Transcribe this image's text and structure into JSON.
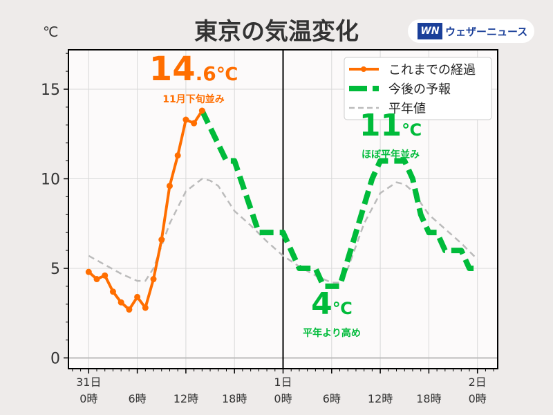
{
  "header": {
    "title": "東京の気温変化",
    "unit": "℃",
    "logo_mark": "WN",
    "logo_text": "ウェザーニュース"
  },
  "annotations": {
    "max_obs": {
      "value_int": "14",
      "value_dec": ".6",
      "unit": "℃",
      "note": "11月下旬並み",
      "color": "#ff6e00"
    },
    "max_fc": {
      "value_int": "11",
      "unit": "℃",
      "note": "ほぼ平年並み",
      "color": "#00bb3a"
    },
    "min_fc": {
      "value_int": "4",
      "unit": "℃",
      "note": "平年より高め",
      "color": "#00bb3a"
    }
  },
  "chart_data": {
    "type": "line",
    "ylim": [
      -0.6,
      17.2
    ],
    "xlim_hours": [
      -2.5,
      50.5
    ],
    "yticks": [
      0,
      5,
      10,
      15
    ],
    "xticks": [
      {
        "hour": 0,
        "label1": "31日",
        "label2": "0時"
      },
      {
        "hour": 6,
        "label1": "",
        "label2": "6時"
      },
      {
        "hour": 12,
        "label1": "",
        "label2": "12時"
      },
      {
        "hour": 18,
        "label1": "",
        "label2": "18時"
      },
      {
        "hour": 24,
        "label1": "1日",
        "label2": "0時"
      },
      {
        "hour": 30,
        "label1": "",
        "label2": "6時"
      },
      {
        "hour": 36,
        "label1": "",
        "label2": "12時"
      },
      {
        "hour": 42,
        "label1": "",
        "label2": "18時"
      },
      {
        "hour": 48,
        "label1": "2日",
        "label2": "0時"
      }
    ],
    "grid": true,
    "legend": {
      "placement": "top-right"
    },
    "series": [
      {
        "name": "これまでの経過",
        "color": "#ff6e00",
        "style": "solid-markers",
        "points": [
          [
            0,
            4.8
          ],
          [
            1,
            4.4
          ],
          [
            2,
            4.6
          ],
          [
            3,
            3.7
          ],
          [
            4,
            3.1
          ],
          [
            5,
            2.7
          ],
          [
            6,
            3.4
          ],
          [
            7,
            2.8
          ],
          [
            8,
            4.4
          ],
          [
            9,
            6.6
          ],
          [
            10,
            9.6
          ],
          [
            11,
            11.3
          ],
          [
            12,
            13.3
          ],
          [
            13,
            13.1
          ],
          [
            14,
            13.8
          ]
        ]
      },
      {
        "name": "今後の予報",
        "color": "#00bb3a",
        "style": "thick-dash",
        "points": [
          [
            14,
            13.8
          ],
          [
            17,
            11
          ],
          [
            18,
            11
          ],
          [
            21,
            7
          ],
          [
            24,
            7
          ],
          [
            26,
            5
          ],
          [
            28,
            5
          ],
          [
            29,
            4
          ],
          [
            31,
            4
          ],
          [
            33,
            7
          ],
          [
            35,
            10
          ],
          [
            36,
            11
          ],
          [
            39,
            11
          ],
          [
            40,
            10
          ],
          [
            41,
            8
          ],
          [
            42,
            7
          ],
          [
            43,
            7
          ],
          [
            44,
            6
          ],
          [
            46,
            6
          ],
          [
            47,
            5
          ],
          [
            48,
            5
          ]
        ]
      },
      {
        "name": "平年値",
        "color": "#bbbbbb",
        "style": "dash",
        "points": [
          [
            0,
            5.7
          ],
          [
            2,
            5.2
          ],
          [
            4,
            4.7
          ],
          [
            6,
            4.3
          ],
          [
            7,
            4.3
          ],
          [
            8,
            5
          ],
          [
            10,
            7.5
          ],
          [
            12,
            9.3
          ],
          [
            14,
            10
          ],
          [
            15,
            9.9
          ],
          [
            16,
            9.6
          ],
          [
            18,
            8.2
          ],
          [
            20,
            7.4
          ],
          [
            22,
            6.5
          ],
          [
            24,
            5.7
          ],
          [
            26,
            5.1
          ],
          [
            28,
            4.6
          ],
          [
            30,
            4.2
          ],
          [
            31,
            4.2
          ],
          [
            32,
            5
          ],
          [
            34,
            7.5
          ],
          [
            36,
            9.2
          ],
          [
            38,
            9.8
          ],
          [
            39,
            9.7
          ],
          [
            40,
            9.3
          ],
          [
            42,
            8
          ],
          [
            44,
            7.2
          ],
          [
            46,
            6.4
          ],
          [
            48,
            5.5
          ]
        ]
      }
    ]
  }
}
